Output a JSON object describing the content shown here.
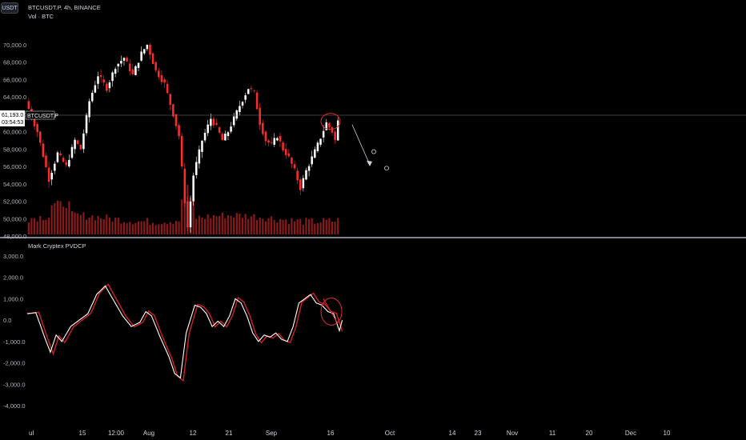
{
  "header": {
    "symbol_title": "BTCUSDT.P, 4h, BINANCE",
    "volume_label": "Vol · BTC",
    "currency_button": "USDT"
  },
  "price_tag": {
    "value": "61,193.0",
    "countdown": "03:54:53",
    "symbol_label": "BTCUSDT.P"
  },
  "indicator": {
    "title": "Mark Cryptex PVDCP"
  },
  "colors": {
    "background": "#000000",
    "candle_up": "#ffffff",
    "candle_down": "#ff2a2a",
    "volume": "#8b1a1a",
    "indicator_main": "#ffffff",
    "indicator_signal": "#d42020",
    "annotation": "#e03030"
  },
  "chart_data": [
    {
      "type": "candlestick",
      "y_ticks": [
        "70,000.0",
        "68,000.0",
        "66,000.0",
        "64,000.0",
        "62,000.0",
        "60,000.0",
        "58,000.0",
        "56,000.0",
        "54,000.0",
        "52,000.0",
        "50,000.0",
        "48,000.0"
      ],
      "ylim": [
        48000,
        71000
      ],
      "x_ticks": [
        "ul",
        "15",
        "12:00",
        "Aug",
        "12",
        "21",
        "Sep",
        "16",
        "Oct",
        "14",
        "23",
        "Nov",
        "11",
        "20",
        "Dec",
        "10"
      ],
      "current_price": 61193,
      "path": [
        [
          0,
          63500
        ],
        [
          4,
          60000
        ],
        [
          8,
          54500
        ],
        [
          11,
          57500
        ],
        [
          14,
          56000
        ],
        [
          17,
          59000
        ],
        [
          19,
          58000
        ],
        [
          22,
          63500
        ],
        [
          25,
          66500
        ],
        [
          28,
          65000
        ],
        [
          31,
          67500
        ],
        [
          34,
          68500
        ],
        [
          37,
          66500
        ],
        [
          40,
          69000
        ],
        [
          42,
          70000
        ],
        [
          45,
          67000
        ],
        [
          48,
          65500
        ],
        [
          51,
          62000
        ],
        [
          53,
          59500
        ],
        [
          55,
          52000
        ],
        [
          56,
          49000
        ],
        [
          58,
          55000
        ],
        [
          61,
          59000
        ],
        [
          64,
          61500
        ],
        [
          66,
          60500
        ],
        [
          68,
          59000
        ],
        [
          70,
          60000
        ],
        [
          72,
          61500
        ],
        [
          74,
          63000
        ],
        [
          77,
          65000
        ],
        [
          79,
          64500
        ],
        [
          81,
          61000
        ],
        [
          83,
          59000
        ],
        [
          85,
          58500
        ],
        [
          87,
          59500
        ],
        [
          89,
          58000
        ],
        [
          91,
          57000
        ],
        [
          93,
          55500
        ],
        [
          95,
          53500
        ],
        [
          97,
          55500
        ],
        [
          99,
          57000
        ],
        [
          101,
          58500
        ],
        [
          104,
          61000
        ],
        [
          106,
          60000
        ],
        [
          107,
          59000
        ],
        [
          108,
          61193
        ]
      ],
      "annotations": {
        "circle_price": 61000,
        "arrow_start_price": 60800,
        "arrow_end_price": 56200,
        "marker_prices": [
          57700,
          55800
        ]
      }
    },
    {
      "type": "volume",
      "series": [
        {
          "name": "Vol · BTC",
          "unit": "BTC"
        }
      ]
    },
    {
      "type": "line",
      "title": "Mark Cryptex PVDCP",
      "y_ticks": [
        "3,000.0",
        "2,000.0",
        "1,000.0",
        "0.0",
        "-1,000.0",
        "-2,000.0",
        "-3,000.0",
        "-4,000.0"
      ],
      "ylim": [
        -4300,
        3300
      ],
      "path": [
        [
          0,
          300
        ],
        [
          3,
          350
        ],
        [
          6,
          -800
        ],
        [
          8,
          -1500
        ],
        [
          10,
          -700
        ],
        [
          12,
          -1000
        ],
        [
          15,
          -300
        ],
        [
          18,
          0
        ],
        [
          21,
          300
        ],
        [
          24,
          1200
        ],
        [
          27,
          1600
        ],
        [
          30,
          900
        ],
        [
          33,
          200
        ],
        [
          36,
          -300
        ],
        [
          39,
          -100
        ],
        [
          41,
          400
        ],
        [
          43,
          200
        ],
        [
          46,
          -800
        ],
        [
          49,
          -1700
        ],
        [
          51,
          -2500
        ],
        [
          53,
          -2700
        ],
        [
          55,
          -600
        ],
        [
          58,
          700
        ],
        [
          60,
          600
        ],
        [
          62,
          300
        ],
        [
          64,
          -300
        ],
        [
          66,
          -50
        ],
        [
          68,
          -300
        ],
        [
          70,
          200
        ],
        [
          72,
          1000
        ],
        [
          74,
          800
        ],
        [
          76,
          200
        ],
        [
          78,
          -600
        ],
        [
          80,
          -1000
        ],
        [
          82,
          -700
        ],
        [
          84,
          -800
        ],
        [
          86,
          -600
        ],
        [
          88,
          -900
        ],
        [
          90,
          -1000
        ],
        [
          92,
          -300
        ],
        [
          94,
          800
        ],
        [
          96,
          1000
        ],
        [
          98,
          1200
        ],
        [
          100,
          800
        ],
        [
          102,
          700
        ],
        [
          104,
          400
        ],
        [
          106,
          300
        ],
        [
          108,
          -500
        ],
        [
          109,
          0
        ]
      ],
      "signal_lag": 1
    }
  ]
}
